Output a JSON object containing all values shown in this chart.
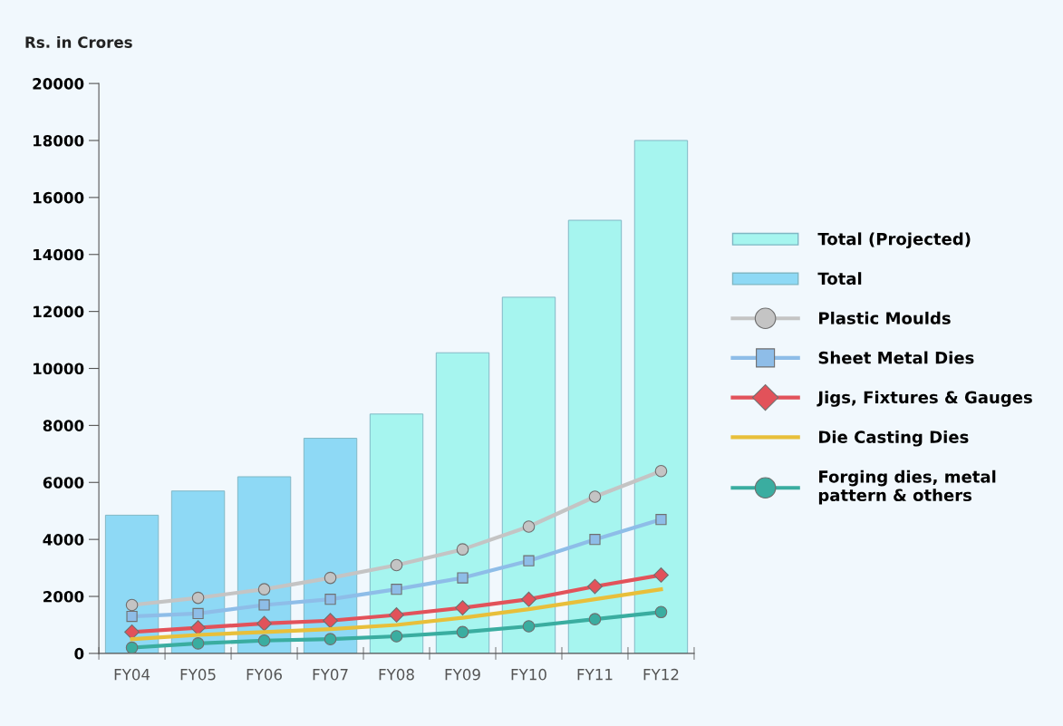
{
  "chart_data": {
    "type": "bar",
    "ylabel": "Rs. in Crores",
    "categories": [
      "FY04",
      "FY05",
      "FY06",
      "FY07",
      "FY08",
      "FY09",
      "FY10",
      "FY11",
      "FY12"
    ],
    "ylim": [
      0,
      20000
    ],
    "yticks": [
      0,
      2000,
      4000,
      6000,
      8000,
      10000,
      12000,
      14000,
      16000,
      18000,
      20000
    ],
    "legend": "right",
    "grid": false,
    "series": [
      {
        "name": "Total (Projected)",
        "color": "#a6f5ef",
        "values": [
          null,
          null,
          null,
          null,
          8400,
          10550,
          12500,
          15200,
          18000
        ]
      },
      {
        "name": "Total",
        "color": "#8ed9f5",
        "values": [
          4850,
          5700,
          6200,
          7550,
          null,
          null,
          null,
          null,
          null
        ]
      },
      {
        "name": "Plastic Moulds",
        "type": "line",
        "color": "#c4c4c4",
        "marker": "circle",
        "values": [
          1700,
          1950,
          2250,
          2650,
          3100,
          3650,
          4450,
          5500,
          6400
        ]
      },
      {
        "name": "Sheet Metal Dies",
        "type": "line",
        "color": "#8ebde8",
        "marker": "square",
        "values": [
          1300,
          1400,
          1700,
          1900,
          2250,
          2650,
          3250,
          4000,
          4700
        ]
      },
      {
        "name": "Jigs, Fixtures & Gauges",
        "type": "line",
        "color": "#e2525a",
        "marker": "diamond",
        "values": [
          750,
          900,
          1050,
          1150,
          1350,
          1600,
          1900,
          2350,
          2750
        ]
      },
      {
        "name": "Die Casting Dies",
        "type": "line",
        "color": "#e8bf3a",
        "marker": "none",
        "values": [
          500,
          650,
          750,
          850,
          1000,
          1250,
          1550,
          1900,
          2250
        ]
      },
      {
        "name": "Forging dies, metal\npattern & others",
        "type": "line",
        "color": "#3aada0",
        "marker": "circle",
        "values": [
          200,
          350,
          450,
          500,
          600,
          750,
          950,
          1200,
          1450
        ]
      }
    ]
  }
}
